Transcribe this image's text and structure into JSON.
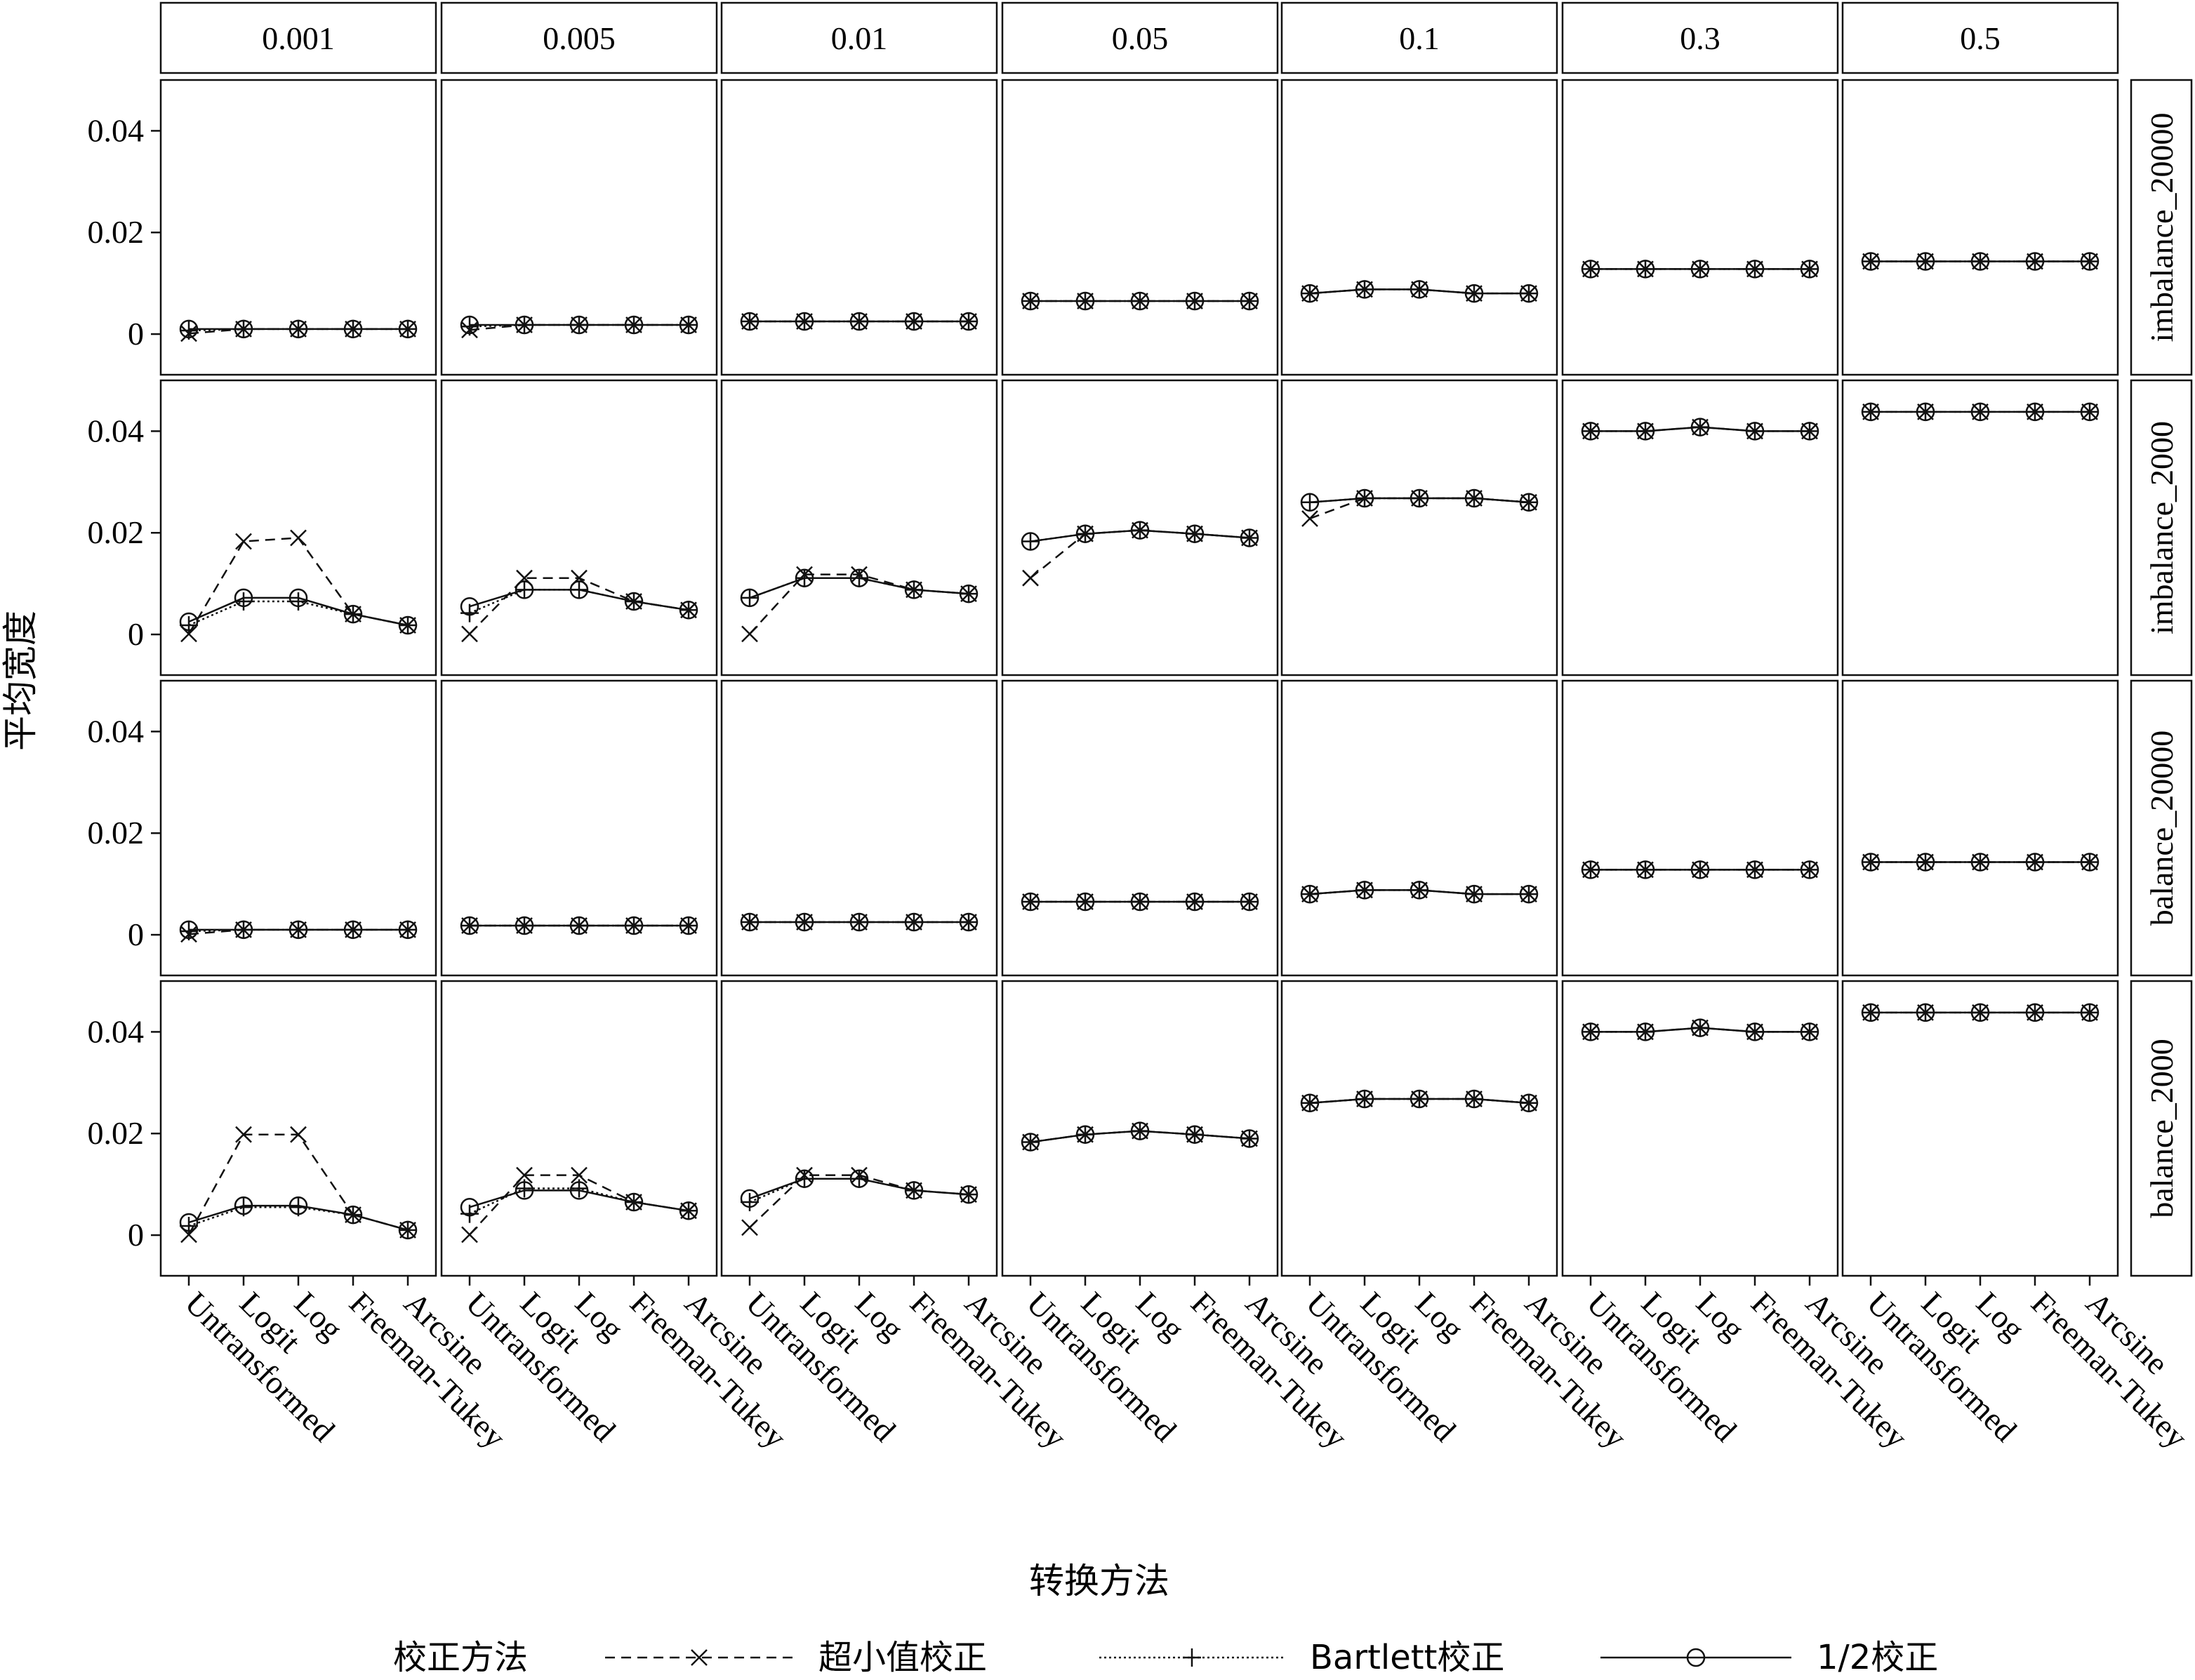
{
  "chart_data": {
    "type": "line",
    "ylabel": "平均宽度",
    "xlabel": "转换方法",
    "ylim": [
      -0.008,
      0.05
    ],
    "yticks": [
      "0",
      "0.02",
      "0.04"
    ],
    "categories": [
      "Untransformed",
      "Logit",
      "Log",
      "Freeman-Tukey",
      "Arcsine"
    ],
    "columns": [
      "0.001",
      "0.005",
      "0.01",
      "0.05",
      "0.1",
      "0.3",
      "0.5"
    ],
    "rows": [
      "imbalance_20000",
      "imbalance_2000",
      "balance_20000",
      "balance_2000"
    ],
    "legend": {
      "title": "校正方法",
      "placement": "bottom",
      "entries": [
        {
          "label": "超小值校正",
          "linestyle": "dashed",
          "marker": "x"
        },
        {
          "label": "Bartlett校正",
          "linestyle": "dotted",
          "marker": "+"
        },
        {
          "label": "1/2校正",
          "linestyle": "solid",
          "marker": "o"
        }
      ]
    },
    "panels": [
      [
        {
          "超小值校正": [
            0.0001,
            0.001,
            0.001,
            0.001,
            0.001
          ],
          "Bartlett校正": [
            0.0007,
            0.001,
            0.001,
            0.001,
            0.001
          ],
          "1/2校正": [
            0.001,
            0.001,
            0.001,
            0.001,
            0.001
          ]
        },
        {
          "超小值校正": [
            0.0008,
            0.0018,
            0.0018,
            0.0018,
            0.0018
          ],
          "Bartlett校正": [
            0.0015,
            0.0018,
            0.0018,
            0.0018,
            0.0018
          ],
          "1/2校正": [
            0.0018,
            0.0018,
            0.0018,
            0.0018,
            0.0018
          ]
        },
        {
          "超小值校正": [
            0.0025,
            0.0025,
            0.0025,
            0.0025,
            0.0025
          ],
          "Bartlett校正": [
            0.0025,
            0.0025,
            0.0025,
            0.0025,
            0.0025
          ],
          "1/2校正": [
            0.0025,
            0.0025,
            0.0025,
            0.0025,
            0.0025
          ]
        },
        {
          "超小值校正": [
            0.0065,
            0.0065,
            0.0065,
            0.0065,
            0.0065
          ],
          "Bartlett校正": [
            0.0065,
            0.0065,
            0.0065,
            0.0065,
            0.0065
          ],
          "1/2校正": [
            0.0065,
            0.0065,
            0.0065,
            0.0065,
            0.0065
          ]
        },
        {
          "超小值校正": [
            0.008,
            0.0088,
            0.0088,
            0.008,
            0.008
          ],
          "Bartlett校正": [
            0.008,
            0.0088,
            0.0088,
            0.008,
            0.008
          ],
          "1/2校正": [
            0.008,
            0.0088,
            0.0088,
            0.008,
            0.008
          ]
        },
        {
          "超小值校正": [
            0.0128,
            0.0128,
            0.0128,
            0.0128,
            0.0128
          ],
          "Bartlett校正": [
            0.0128,
            0.0128,
            0.0128,
            0.0128,
            0.0128
          ],
          "1/2校正": [
            0.0128,
            0.0128,
            0.0128,
            0.0128,
            0.0128
          ]
        },
        {
          "超小值校正": [
            0.0143,
            0.0143,
            0.0143,
            0.0143,
            0.0143
          ],
          "Bartlett校正": [
            0.0143,
            0.0143,
            0.0143,
            0.0143,
            0.0143
          ],
          "1/2校正": [
            0.0143,
            0.0143,
            0.0143,
            0.0143,
            0.0143
          ]
        }
      ],
      [
        {
          "超小值校正": [
            0.0001,
            0.0183,
            0.019,
            0.004,
            0.0018
          ],
          "Bartlett校正": [
            0.0018,
            0.0065,
            0.0065,
            0.004,
            0.0018
          ],
          "1/2校正": [
            0.0025,
            0.0072,
            0.0072,
            0.004,
            0.0018
          ]
        },
        {
          "超小值校正": [
            0.0001,
            0.0111,
            0.0111,
            0.0065,
            0.0048
          ],
          "Bartlett校正": [
            0.0042,
            0.0088,
            0.0088,
            0.0065,
            0.0048
          ],
          "1/2校正": [
            0.0055,
            0.0088,
            0.0088,
            0.0065,
            0.0048
          ]
        },
        {
          "超小值校正": [
            0.0001,
            0.0118,
            0.0118,
            0.0088,
            0.008
          ],
          "Bartlett校正": [
            0.0072,
            0.0111,
            0.0111,
            0.0088,
            0.008
          ],
          "1/2校正": [
            0.0072,
            0.0111,
            0.0111,
            0.0088,
            0.008
          ]
        },
        {
          "超小值校正": [
            0.0111,
            0.0198,
            0.0205,
            0.0198,
            0.019
          ],
          "Bartlett校正": [
            0.0183,
            0.0198,
            0.0205,
            0.0198,
            0.019
          ],
          "1/2校正": [
            0.0183,
            0.0198,
            0.0205,
            0.0198,
            0.019
          ]
        },
        {
          "超小值校正": [
            0.0228,
            0.0268,
            0.0268,
            0.0268,
            0.026
          ],
          "Bartlett校正": [
            0.026,
            0.0268,
            0.0268,
            0.0268,
            0.026
          ],
          "1/2校正": [
            0.026,
            0.0268,
            0.0268,
            0.0268,
            0.026
          ]
        },
        {
          "超小值校正": [
            0.04,
            0.04,
            0.0408,
            0.04,
            0.04
          ],
          "Bartlett校正": [
            0.04,
            0.04,
            0.0408,
            0.04,
            0.04
          ],
          "1/2校正": [
            0.04,
            0.04,
            0.0408,
            0.04,
            0.04
          ]
        },
        {
          "超小值校正": [
            0.0438,
            0.0438,
            0.0438,
            0.0438,
            0.0438
          ],
          "Bartlett校正": [
            0.0438,
            0.0438,
            0.0438,
            0.0438,
            0.0438
          ],
          "1/2校正": [
            0.0438,
            0.0438,
            0.0438,
            0.0438,
            0.0438
          ]
        }
      ],
      [
        {
          "超小值校正": [
            0.0001,
            0.001,
            0.001,
            0.001,
            0.001
          ],
          "Bartlett校正": [
            0.0007,
            0.001,
            0.001,
            0.001,
            0.001
          ],
          "1/2校正": [
            0.001,
            0.001,
            0.001,
            0.001,
            0.001
          ]
        },
        {
          "超小值校正": [
            0.0018,
            0.0018,
            0.0018,
            0.0018,
            0.0018
          ],
          "Bartlett校正": [
            0.0018,
            0.0018,
            0.0018,
            0.0018,
            0.0018
          ],
          "1/2校正": [
            0.0018,
            0.0018,
            0.0018,
            0.0018,
            0.0018
          ]
        },
        {
          "超小值校正": [
            0.0025,
            0.0025,
            0.0025,
            0.0025,
            0.0025
          ],
          "Bartlett校正": [
            0.0025,
            0.0025,
            0.0025,
            0.0025,
            0.0025
          ],
          "1/2校正": [
            0.0025,
            0.0025,
            0.0025,
            0.0025,
            0.0025
          ]
        },
        {
          "超小值校正": [
            0.0065,
            0.0065,
            0.0065,
            0.0065,
            0.0065
          ],
          "Bartlett校正": [
            0.0065,
            0.0065,
            0.0065,
            0.0065,
            0.0065
          ],
          "1/2校正": [
            0.0065,
            0.0065,
            0.0065,
            0.0065,
            0.0065
          ]
        },
        {
          "超小值校正": [
            0.008,
            0.0088,
            0.0088,
            0.008,
            0.008
          ],
          "Bartlett校正": [
            0.008,
            0.0088,
            0.0088,
            0.008,
            0.008
          ],
          "1/2校正": [
            0.008,
            0.0088,
            0.0088,
            0.008,
            0.008
          ]
        },
        {
          "超小值校正": [
            0.0128,
            0.0128,
            0.0128,
            0.0128,
            0.0128
          ],
          "Bartlett校正": [
            0.0128,
            0.0128,
            0.0128,
            0.0128,
            0.0128
          ],
          "1/2校正": [
            0.0128,
            0.0128,
            0.0128,
            0.0128,
            0.0128
          ]
        },
        {
          "超小值校正": [
            0.0143,
            0.0143,
            0.0143,
            0.0143,
            0.0143
          ],
          "Bartlett校正": [
            0.0143,
            0.0143,
            0.0143,
            0.0143,
            0.0143
          ],
          "1/2校正": [
            0.0143,
            0.0143,
            0.0143,
            0.0143,
            0.0143
          ]
        }
      ],
      [
        {
          "超小值校正": [
            0.0001,
            0.0198,
            0.0198,
            0.004,
            0.001
          ],
          "Bartlett校正": [
            0.0018,
            0.0055,
            0.0055,
            0.004,
            0.001
          ],
          "1/2校正": [
            0.0025,
            0.0058,
            0.0058,
            0.004,
            0.001
          ]
        },
        {
          "超小值校正": [
            0.0001,
            0.0118,
            0.0118,
            0.0065,
            0.0048
          ],
          "Bartlett校正": [
            0.0042,
            0.0092,
            0.0092,
            0.0065,
            0.0048
          ],
          "1/2校正": [
            0.0055,
            0.0088,
            0.0088,
            0.0065,
            0.0048
          ]
        },
        {
          "超小值校正": [
            0.0015,
            0.0118,
            0.0118,
            0.0088,
            0.008
          ],
          "Bartlett校正": [
            0.0065,
            0.0111,
            0.0111,
            0.0088,
            0.008
          ],
          "1/2校正": [
            0.0072,
            0.0111,
            0.0111,
            0.0088,
            0.008
          ]
        },
        {
          "超小值校正": [
            0.0183,
            0.0198,
            0.0205,
            0.0198,
            0.019
          ],
          "Bartlett校正": [
            0.0183,
            0.0198,
            0.0205,
            0.0198,
            0.019
          ],
          "1/2校正": [
            0.0183,
            0.0198,
            0.0205,
            0.0198,
            0.019
          ]
        },
        {
          "超小值校正": [
            0.026,
            0.0268,
            0.0268,
            0.0268,
            0.026
          ],
          "Bartlett校正": [
            0.026,
            0.0268,
            0.0268,
            0.0268,
            0.026
          ],
          "1/2校正": [
            0.026,
            0.0268,
            0.0268,
            0.0268,
            0.026
          ]
        },
        {
          "超小值校正": [
            0.04,
            0.04,
            0.0408,
            0.04,
            0.04
          ],
          "Bartlett校正": [
            0.04,
            0.04,
            0.0408,
            0.04,
            0.04
          ],
          "1/2校正": [
            0.04,
            0.04,
            0.0408,
            0.04,
            0.04
          ]
        },
        {
          "超小值校正": [
            0.0438,
            0.0438,
            0.0438,
            0.0438,
            0.0438
          ],
          "Bartlett校正": [
            0.0438,
            0.0438,
            0.0438,
            0.0438,
            0.0438
          ],
          "1/2校正": [
            0.0438,
            0.0438,
            0.0438,
            0.0438,
            0.0438
          ]
        }
      ]
    ]
  }
}
